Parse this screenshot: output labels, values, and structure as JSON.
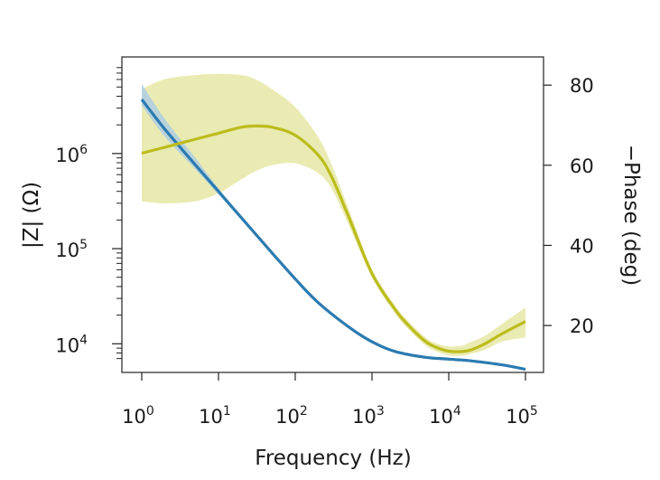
{
  "chart_data": {
    "type": "line",
    "xlabel": "Frequency (Hz)",
    "ylabel_left": "|Z| (Ω)",
    "ylabel_right": "−Phase (deg)",
    "x_scale": "log",
    "y_left_scale": "log",
    "xlim": [
      1,
      100000
    ],
    "ylim_left": [
      6500,
      8500000
    ],
    "ylim_right": [
      11,
      85
    ],
    "x_ticks": [
      {
        "value": 1,
        "base": "10",
        "exp": "0"
      },
      {
        "value": 10,
        "base": "10",
        "exp": "1"
      },
      {
        "value": 100,
        "base": "10",
        "exp": "2"
      },
      {
        "value": 1000,
        "base": "10",
        "exp": "3"
      },
      {
        "value": 10000,
        "base": "10",
        "exp": "4"
      },
      {
        "value": 100000,
        "base": "10",
        "exp": "5"
      }
    ],
    "y_left_ticks": [
      {
        "value": 10000,
        "base": "10",
        "exp": "4"
      },
      {
        "value": 100000,
        "base": "10",
        "exp": "5"
      },
      {
        "value": 1000000,
        "base": "10",
        "exp": "6"
      }
    ],
    "y_right_ticks": [
      {
        "value": 20,
        "label": "20"
      },
      {
        "value": 40,
        "label": "40"
      },
      {
        "value": 60,
        "label": "60"
      },
      {
        "value": 80,
        "label": "80"
      }
    ],
    "colors": {
      "impedance": "#2b7bb0",
      "impedance_band": "#a7c9e8",
      "phase": "#bcbc1c",
      "phase_band": "#e6e8a5"
    },
    "series": [
      {
        "axis": "left",
        "x": [
          1,
          2,
          5,
          10,
          20,
          50,
          100,
          200,
          500,
          1000,
          2000,
          5000,
          10000,
          20000,
          50000,
          100000
        ],
        "y": [
          3700000,
          1800000,
          760000,
          400000,
          210000,
          90000,
          48000,
          27000,
          15000,
          10500,
          8300,
          7200,
          6900,
          6600,
          6000,
          5400
        ],
        "lower": [
          3200000,
          1500000,
          680000,
          370000,
          200000,
          90000,
          48000,
          27000,
          15000,
          10500,
          8300,
          7200,
          6900,
          6600,
          6000,
          5400
        ],
        "upper": [
          5400000,
          2300000,
          900000,
          430000,
          215000,
          90000,
          48000,
          27000,
          15000,
          10500,
          8300,
          7200,
          6900,
          6600,
          6000,
          5400
        ]
      },
      {
        "axis": "right",
        "x": [
          1,
          2,
          5,
          10,
          20,
          30,
          50,
          100,
          200,
          300,
          500,
          1000,
          2000,
          3000,
          5000,
          7000,
          10000,
          15000,
          20000,
          30000,
          50000,
          100000
        ],
        "y": [
          63,
          64.5,
          66.5,
          68,
          69.5,
          69.8,
          69.5,
          67.5,
          62.5,
          57,
          47,
          33,
          24,
          20,
          16,
          14.5,
          13.6,
          13.5,
          14,
          15.5,
          18,
          21
        ],
        "lower": [
          51,
          50.5,
          51,
          53,
          56.5,
          58.5,
          60,
          60.5,
          58,
          54,
          45,
          32,
          23,
          19,
          15,
          13.5,
          12.5,
          12.5,
          13,
          14,
          16,
          17
        ],
        "upper": [
          79,
          81.5,
          82.5,
          82.8,
          82.5,
          81.5,
          79,
          74.5,
          67,
          60,
          49,
          34,
          25,
          21,
          17,
          15.5,
          14.8,
          15,
          16,
          17.5,
          20.5,
          24.5
        ]
      }
    ]
  }
}
